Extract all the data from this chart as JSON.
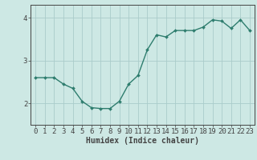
{
  "x": [
    0,
    1,
    2,
    3,
    4,
    5,
    6,
    7,
    8,
    9,
    10,
    11,
    12,
    13,
    14,
    15,
    16,
    17,
    18,
    19,
    20,
    21,
    22,
    23
  ],
  "y": [
    2.6,
    2.6,
    2.6,
    2.45,
    2.35,
    2.05,
    1.9,
    1.88,
    1.88,
    2.05,
    2.45,
    2.65,
    3.25,
    3.6,
    3.55,
    3.7,
    3.7,
    3.7,
    3.78,
    3.95,
    3.92,
    3.75,
    3.95,
    3.7
  ],
  "line_color": "#2e7d6e",
  "marker": "D",
  "marker_size": 2.0,
  "bg_color": "#cde8e4",
  "grid_color": "#aaccca",
  "axis_color": "#444444",
  "xlabel": "Humidex (Indice chaleur)",
  "xlabel_fontsize": 7,
  "xlim": [
    -0.5,
    23.5
  ],
  "ylim": [
    1.5,
    4.3
  ],
  "yticks": [
    2,
    3,
    4
  ],
  "xticks": [
    0,
    1,
    2,
    3,
    4,
    5,
    6,
    7,
    8,
    9,
    10,
    11,
    12,
    13,
    14,
    15,
    16,
    17,
    18,
    19,
    20,
    21,
    22,
    23
  ],
  "tick_fontsize": 6.5,
  "linewidth": 1.0
}
